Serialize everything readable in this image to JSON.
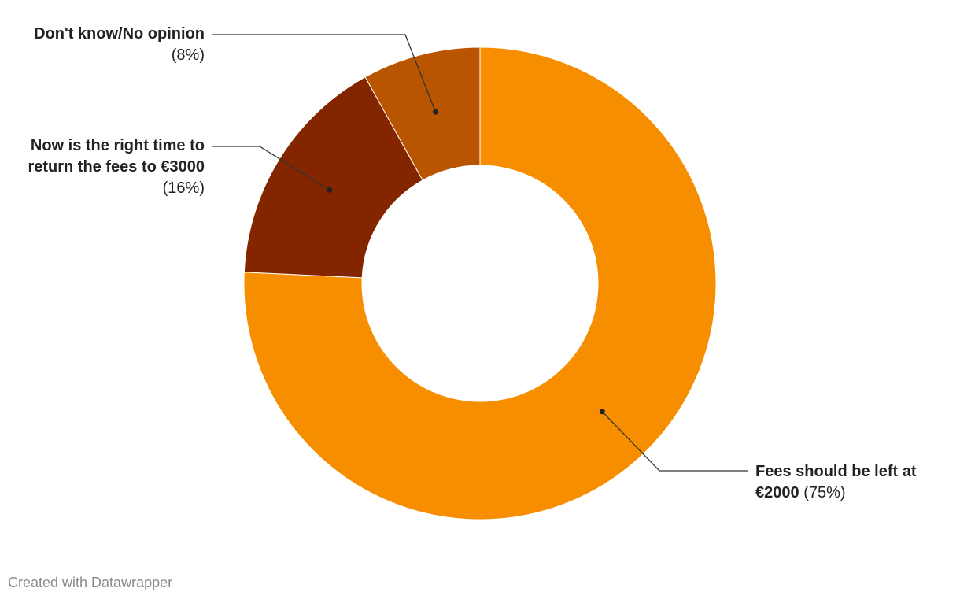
{
  "chart_data": {
    "type": "donut",
    "categories": [
      "Fees should be left at €2000",
      "Now is the right time to return the fees to €3000",
      "Don't know/No opinion"
    ],
    "values": [
      75,
      16,
      8
    ],
    "value_labels": [
      "(75%)",
      "(16%)",
      "(8%)"
    ],
    "colors": [
      "#f78e00",
      "#832600",
      "#b95400"
    ],
    "credit": "Created with Datawrapper"
  }
}
